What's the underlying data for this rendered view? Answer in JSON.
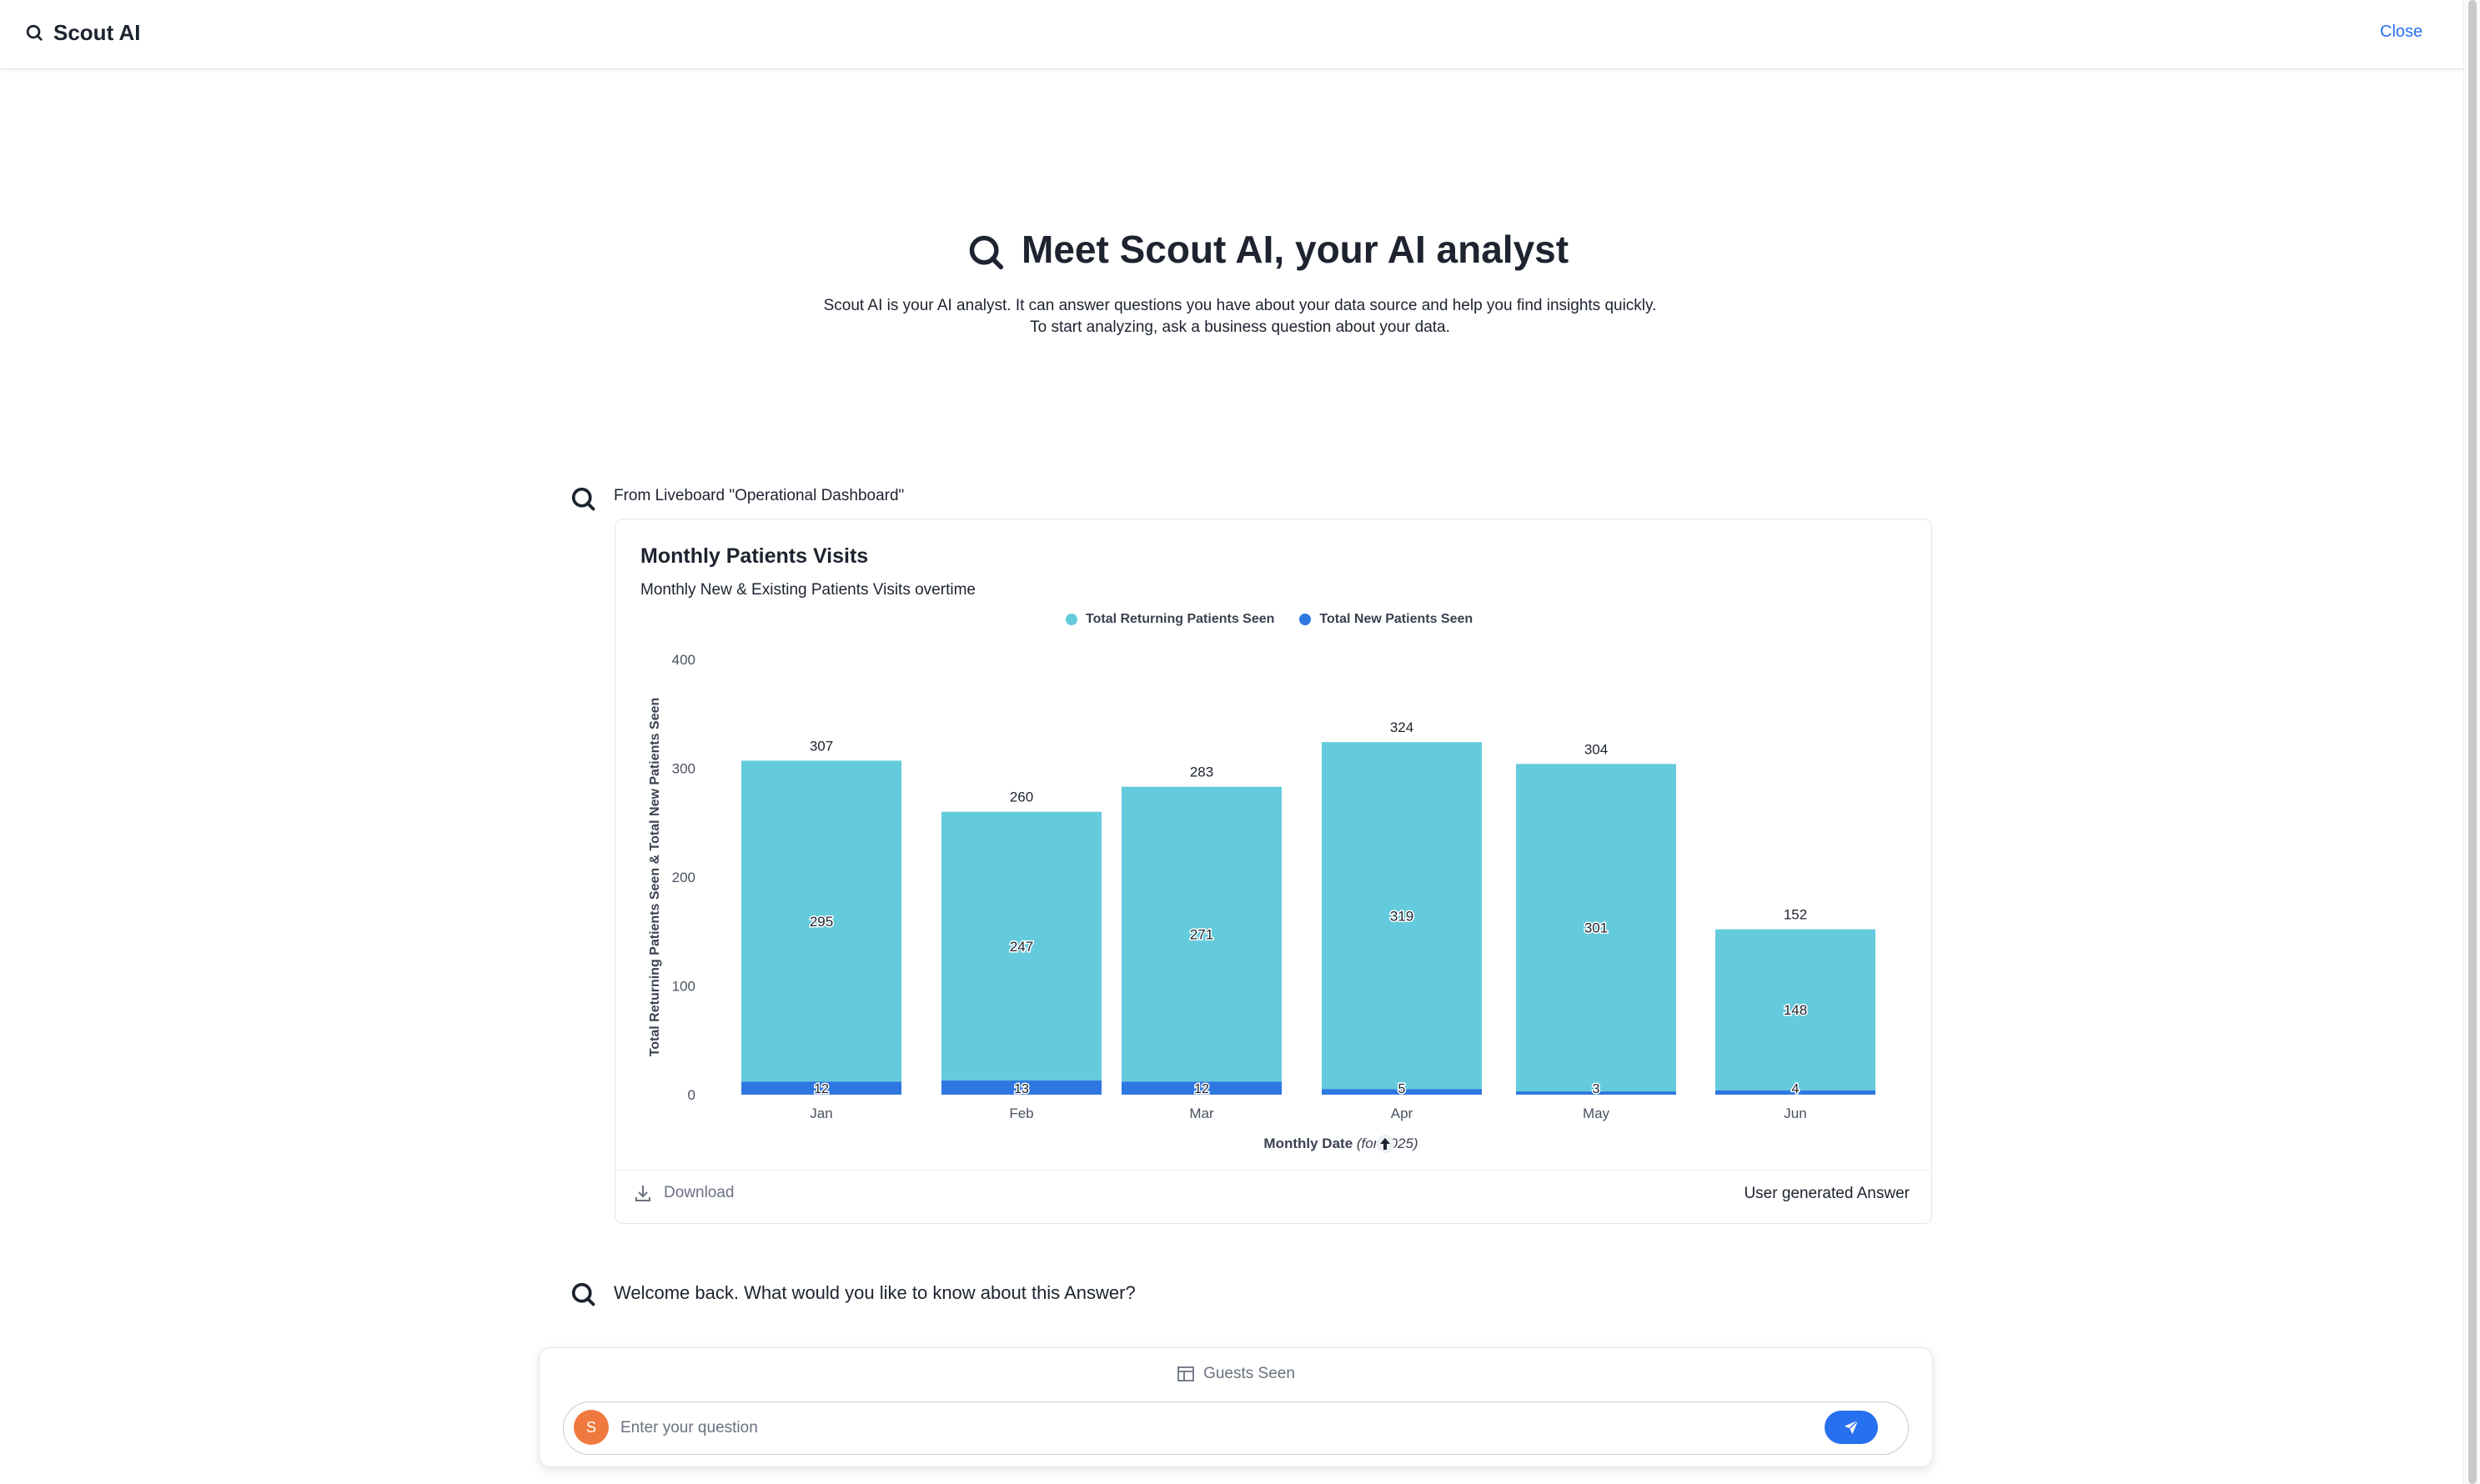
{
  "header": {
    "title": "Scout AI",
    "close_label": "Close"
  },
  "hero": {
    "title": "Meet Scout AI, your AI analyst",
    "description_line1": "Scout AI is your AI analyst. It can answer questions you have about your data source and help you find insights quickly.",
    "description_line2": "To start analyzing, ask a business question about your data."
  },
  "source_message": "From Liveboard \"Operational Dashboard\"",
  "answer_card": {
    "title": "Monthly Patients Visits",
    "subtitle": "Monthly New & Existing Patients Visits overtime",
    "download_label": "Download",
    "user_generated_label": "User generated Answer"
  },
  "chart_data": {
    "type": "bar",
    "stacked": true,
    "categories": [
      "Jan",
      "Feb",
      "Mar",
      "Apr",
      "May",
      "Jun"
    ],
    "series": [
      {
        "name": "Total Returning Patients Seen",
        "values": [
          295,
          247,
          271,
          319,
          301,
          148
        ],
        "color": "#64cbdc"
      },
      {
        "name": "Total New Patients Seen",
        "values": [
          12,
          13,
          12,
          5,
          3,
          4
        ],
        "color": "#2e77e0"
      }
    ],
    "totals": [
      307,
      260,
      283,
      324,
      304,
      152
    ],
    "yticks": [
      0,
      100,
      200,
      300,
      400
    ],
    "ylim": [
      0,
      400
    ],
    "ylabel": "Total Returning Patients Seen & Total New Patients Seen",
    "xlabel": "Monthly Date",
    "xlabel_note": "(for 2025)",
    "legend_position": "top-center",
    "grid": false
  },
  "welcome_message": "Welcome back. What would you like to know about this Answer?",
  "input": {
    "source_chip": "Guests Seen",
    "placeholder": "Enter your question",
    "avatar_letter": "S"
  },
  "colors": {
    "accent": "#2770ef",
    "avatar": "#f0793f",
    "returning": "#64cbdc",
    "new": "#2e77e0"
  }
}
